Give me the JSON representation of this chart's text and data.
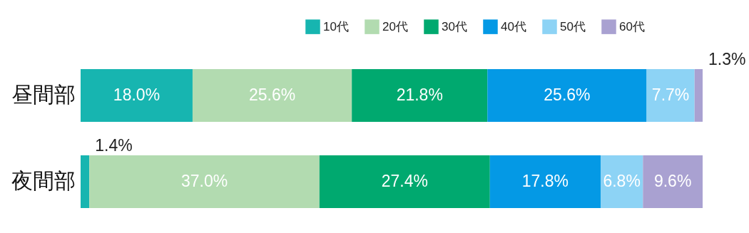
{
  "chart_data": {
    "type": "bar",
    "orientation": "horizontal",
    "stacked": true,
    "legend": "top right",
    "categories": [
      "昼間部",
      "夜間部"
    ],
    "series": [
      {
        "name": "10代",
        "color": "#17b5b0",
        "values": [
          18.0,
          1.4
        ],
        "value_labels": [
          "18.0%",
          "1.4%"
        ]
      },
      {
        "name": "20代",
        "color": "#b2dbb0",
        "values": [
          25.6,
          37.0
        ],
        "value_labels": [
          "25.6%",
          "37.0%"
        ]
      },
      {
        "name": "30代",
        "color": "#00a96f",
        "values": [
          21.8,
          27.4
        ],
        "value_labels": [
          "21.8%",
          "27.4%"
        ]
      },
      {
        "name": "40代",
        "color": "#0499e5",
        "values": [
          25.6,
          17.8
        ],
        "value_labels": [
          "25.6%",
          "17.8%"
        ]
      },
      {
        "name": "50代",
        "color": "#8dd3f5",
        "values": [
          7.7,
          6.8
        ],
        "value_labels": [
          "7.7%",
          "6.8%"
        ]
      },
      {
        "name": "60代",
        "color": "#a9a1d1",
        "values": [
          1.3,
          9.6
        ],
        "value_labels": [
          "1.3%",
          "9.6%"
        ]
      }
    ]
  }
}
